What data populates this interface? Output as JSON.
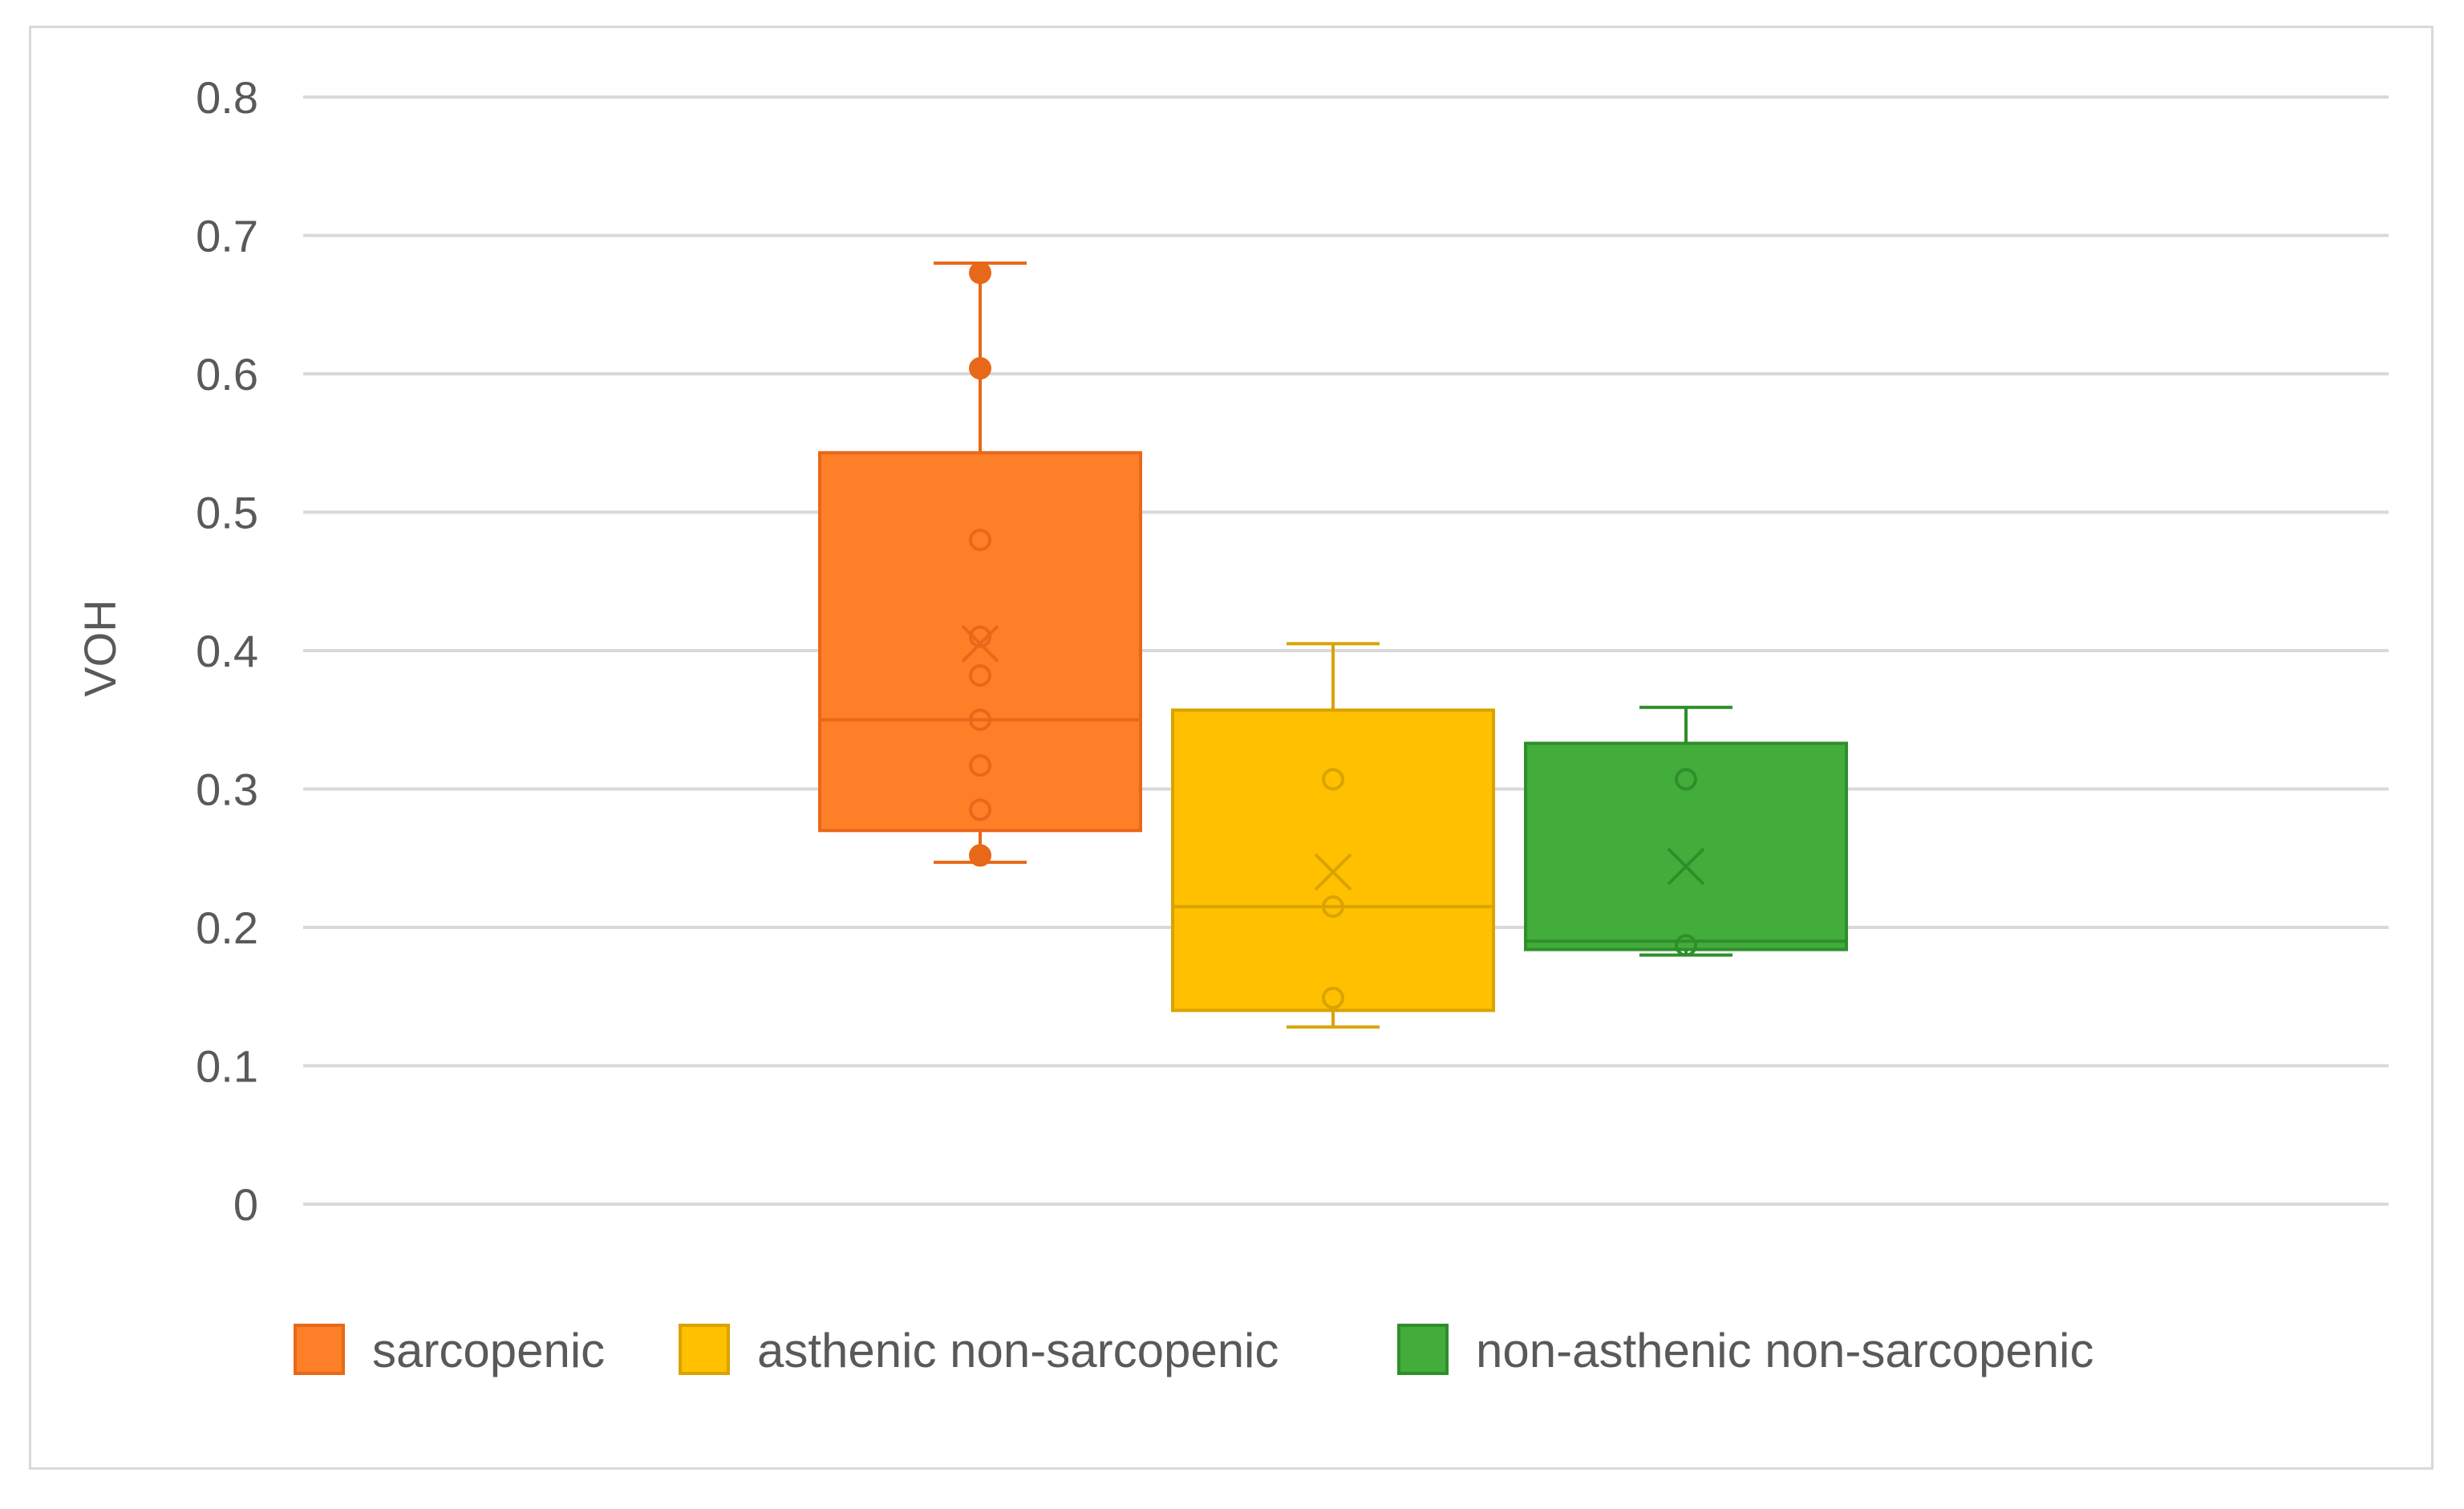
{
  "chart_data": {
    "type": "box",
    "ylabel": "VOH",
    "xlabel": "",
    "ylim": [
      0,
      0.8
    ],
    "yticks": [
      0,
      0.1,
      0.2,
      0.3,
      0.4,
      0.5,
      0.6,
      0.7,
      0.8
    ],
    "ytick_labels": [
      "0",
      "0.1",
      "0.2",
      "0.3",
      "0.4",
      "0.5",
      "0.6",
      "0.7",
      "0.8"
    ],
    "grid": true,
    "legend_position": "bottom",
    "series": [
      {
        "name": "sarcopenic",
        "color": "#fd7f27",
        "stroke": "#e8681a",
        "whisker_low": 0.247,
        "q1": 0.27,
        "median": 0.35,
        "q3": 0.543,
        "whisker_high": 0.68,
        "mean": 0.405,
        "points": [
          0.673,
          0.604,
          0.48,
          0.41,
          0.382,
          0.35,
          0.317,
          0.285,
          0.252
        ]
      },
      {
        "name": "asthenic non-sarcopenic",
        "color": "#ffc000",
        "stroke": "#d9a300",
        "whisker_low": 0.128,
        "q1": 0.14,
        "median": 0.215,
        "q3": 0.357,
        "whisker_high": 0.405,
        "mean": 0.24,
        "points": [
          0.307,
          0.215,
          0.149
        ]
      },
      {
        "name": "non-asthenic non-sarcopenic",
        "color": "#43ad3c",
        "stroke": "#2e8f2a",
        "whisker_low": 0.18,
        "q1": 0.184,
        "median": 0.19,
        "q3": 0.333,
        "whisker_high": 0.359,
        "mean": 0.244,
        "points": [
          0.307,
          0.187
        ]
      }
    ]
  }
}
